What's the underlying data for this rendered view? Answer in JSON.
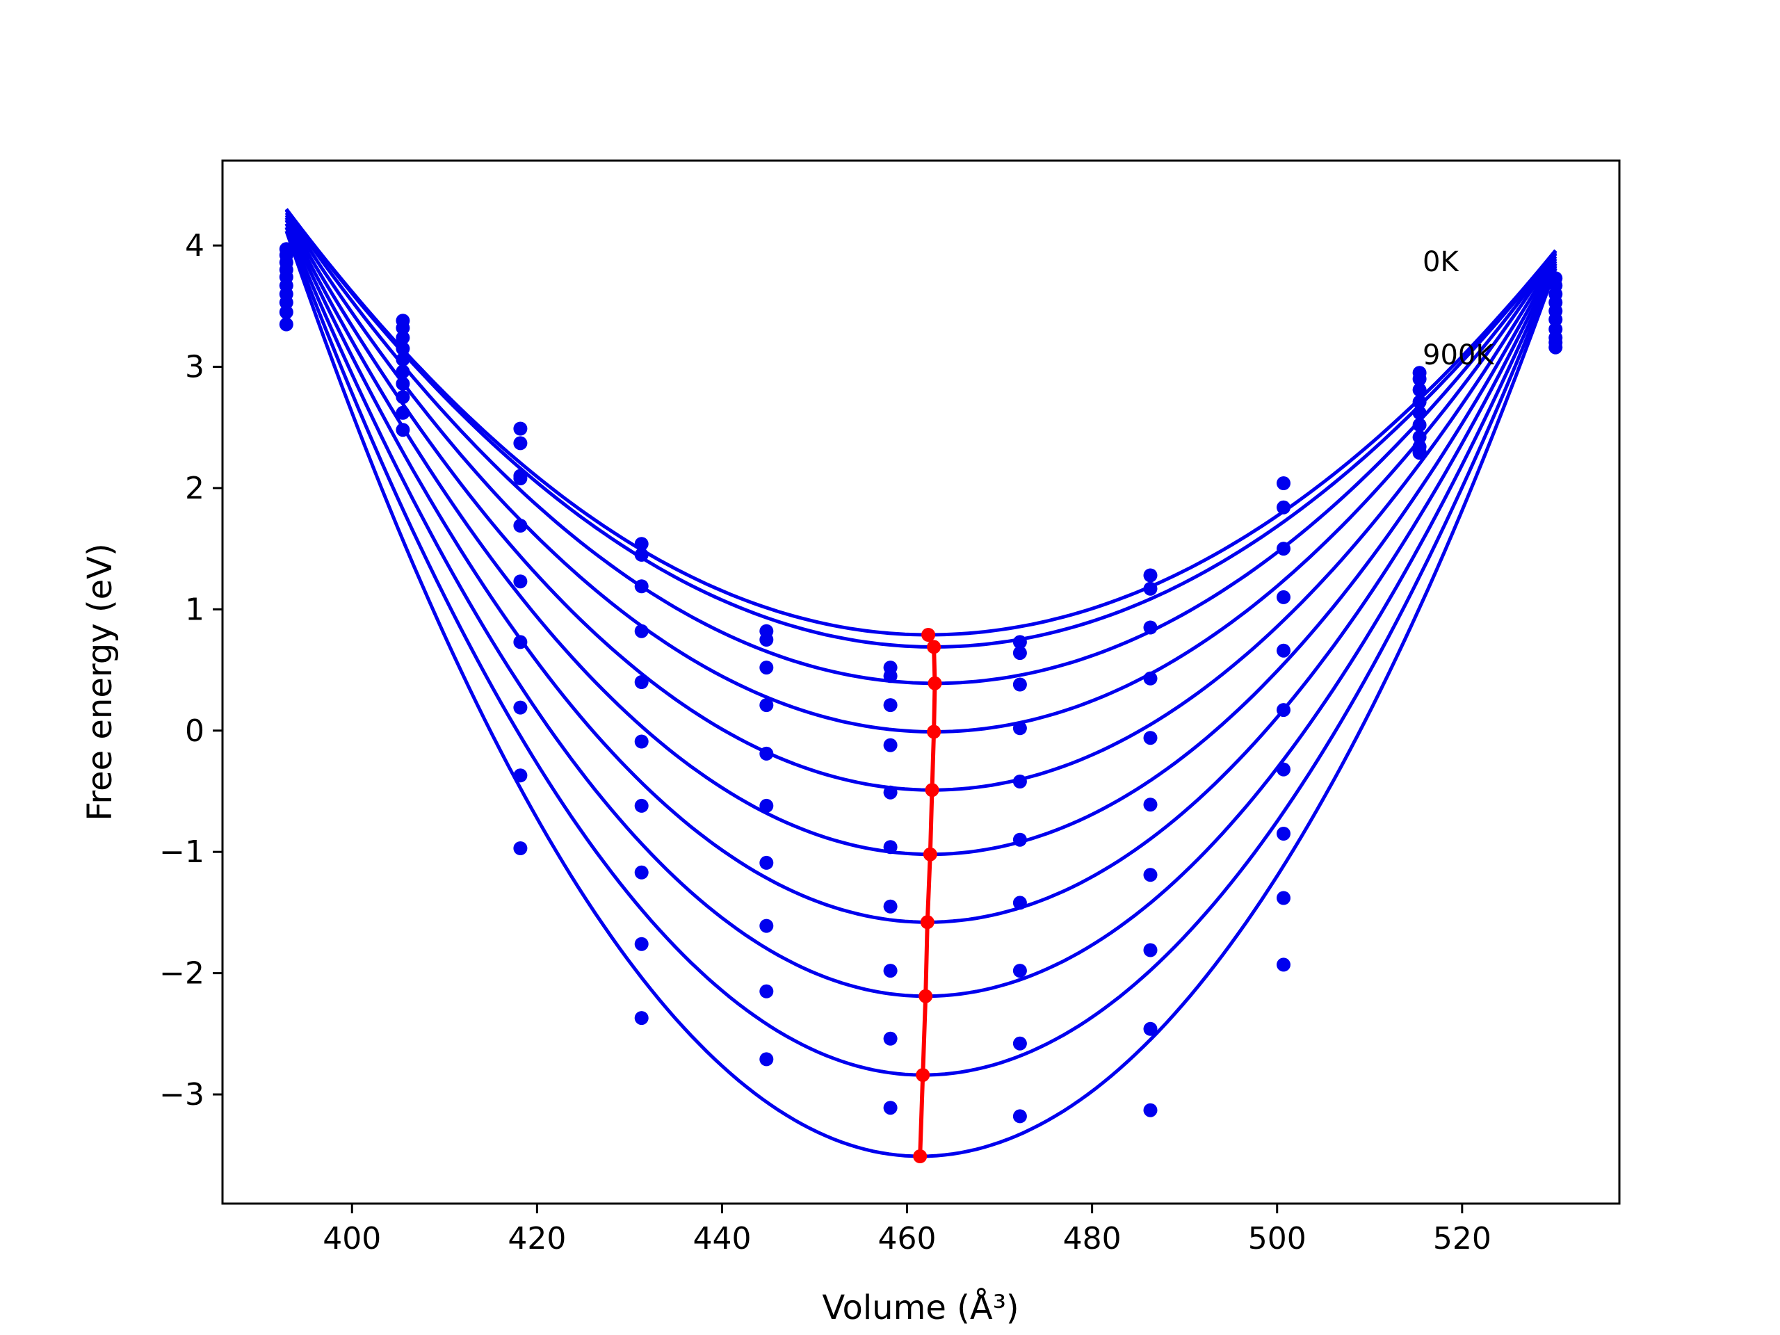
{
  "chart_data": {
    "type": "scatter",
    "title": "",
    "xlabel": "Volume (Å³)",
    "ylabel": "Free energy (eV)",
    "xlim": [
      386,
      537
    ],
    "ylim": [
      -3.9,
      4.7
    ],
    "xticks": [
      400,
      420,
      440,
      460,
      480,
      500,
      520
    ],
    "yticks": [
      4,
      3,
      2,
      1,
      0,
      -1,
      -2,
      -3
    ],
    "ytick_labels": [
      "4",
      "3",
      "2",
      "1",
      "0",
      "−1",
      "−2",
      "−3"
    ],
    "grid": false,
    "legend": "none",
    "annotations": [
      {
        "text": "0K",
        "x": 515.8,
        "y": 3.78
      },
      {
        "text": "900K",
        "x": 515.8,
        "y": 3.06
      }
    ],
    "volumes": [
      392.9,
      405.5,
      418.2,
      431.3,
      444.8,
      458.2,
      472.2,
      486.3,
      500.7,
      515.4,
      530.1
    ],
    "fit_range": [
      392.9,
      530.1
    ],
    "colors": {
      "fit": "#0000ee",
      "points": "#0000ee",
      "minima": "#ff0000"
    },
    "series": [
      {
        "points": [
          3.35,
          2.48,
          2.08,
          1.54,
          0.82,
          0.52,
          0.73,
          1.28,
          2.04,
          2.95,
          3.73
        ]
      },
      {
        "points": [
          3.45,
          2.62,
          2.37,
          1.45,
          0.75,
          0.45,
          0.64,
          1.17,
          1.84,
          2.9,
          3.67
        ]
      },
      {
        "points": [
          3.53,
          2.75,
          2.49,
          1.19,
          0.52,
          0.21,
          0.38,
          0.85,
          1.5,
          2.81,
          3.6
        ]
      },
      {
        "points": [
          3.6,
          2.86,
          2.1,
          0.82,
          0.21,
          -0.12,
          0.02,
          0.43,
          1.1,
          2.71,
          3.53
        ]
      },
      {
        "points": [
          3.67,
          2.96,
          1.69,
          0.4,
          -0.19,
          -0.51,
          -0.42,
          -0.06,
          0.66,
          2.62,
          3.46
        ]
      },
      {
        "points": [
          3.74,
          3.06,
          1.23,
          -0.09,
          -0.62,
          -0.96,
          -0.9,
          -0.61,
          0.17,
          2.52,
          3.39
        ]
      },
      {
        "points": [
          3.8,
          3.15,
          0.73,
          -0.62,
          -1.09,
          -1.45,
          -1.42,
          -1.19,
          -0.32,
          2.42,
          3.31
        ]
      },
      {
        "points": [
          3.86,
          3.24,
          0.19,
          -1.17,
          -1.61,
          -1.98,
          -1.98,
          -1.81,
          -0.85,
          2.34,
          3.24
        ]
      },
      {
        "points": [
          3.92,
          3.32,
          -0.37,
          -1.76,
          -2.15,
          -2.54,
          -2.58,
          -2.46,
          -1.38,
          2.3,
          3.2
        ]
      },
      {
        "points": [
          3.97,
          3.38,
          -0.97,
          -2.37,
          -2.71,
          -3.11,
          -3.18,
          -3.13,
          -1.93,
          2.29,
          3.16
        ]
      }
    ],
    "fits": [
      {
        "v0": 462.3,
        "f0": 0.79,
        "left": 4.3,
        "right": 3.96
      },
      {
        "v0": 462.9,
        "f0": 0.69,
        "left": 4.3,
        "right": 3.95
      },
      {
        "v0": 463.0,
        "f0": 0.39,
        "left": 4.29,
        "right": 3.94
      },
      {
        "v0": 462.9,
        "f0": -0.01,
        "left": 4.27,
        "right": 3.93
      },
      {
        "v0": 462.7,
        "f0": -0.49,
        "left": 4.25,
        "right": 3.91
      },
      {
        "v0": 462.5,
        "f0": -1.02,
        "left": 4.23,
        "right": 3.89
      },
      {
        "v0": 462.2,
        "f0": -1.58,
        "left": 4.21,
        "right": 3.87
      },
      {
        "v0": 462.0,
        "f0": -2.19,
        "left": 4.18,
        "right": 3.85
      },
      {
        "v0": 461.7,
        "f0": -2.84,
        "left": 4.15,
        "right": 3.83
      },
      {
        "v0": 461.4,
        "f0": -3.51,
        "left": 4.12,
        "right": 3.81
      }
    ]
  }
}
